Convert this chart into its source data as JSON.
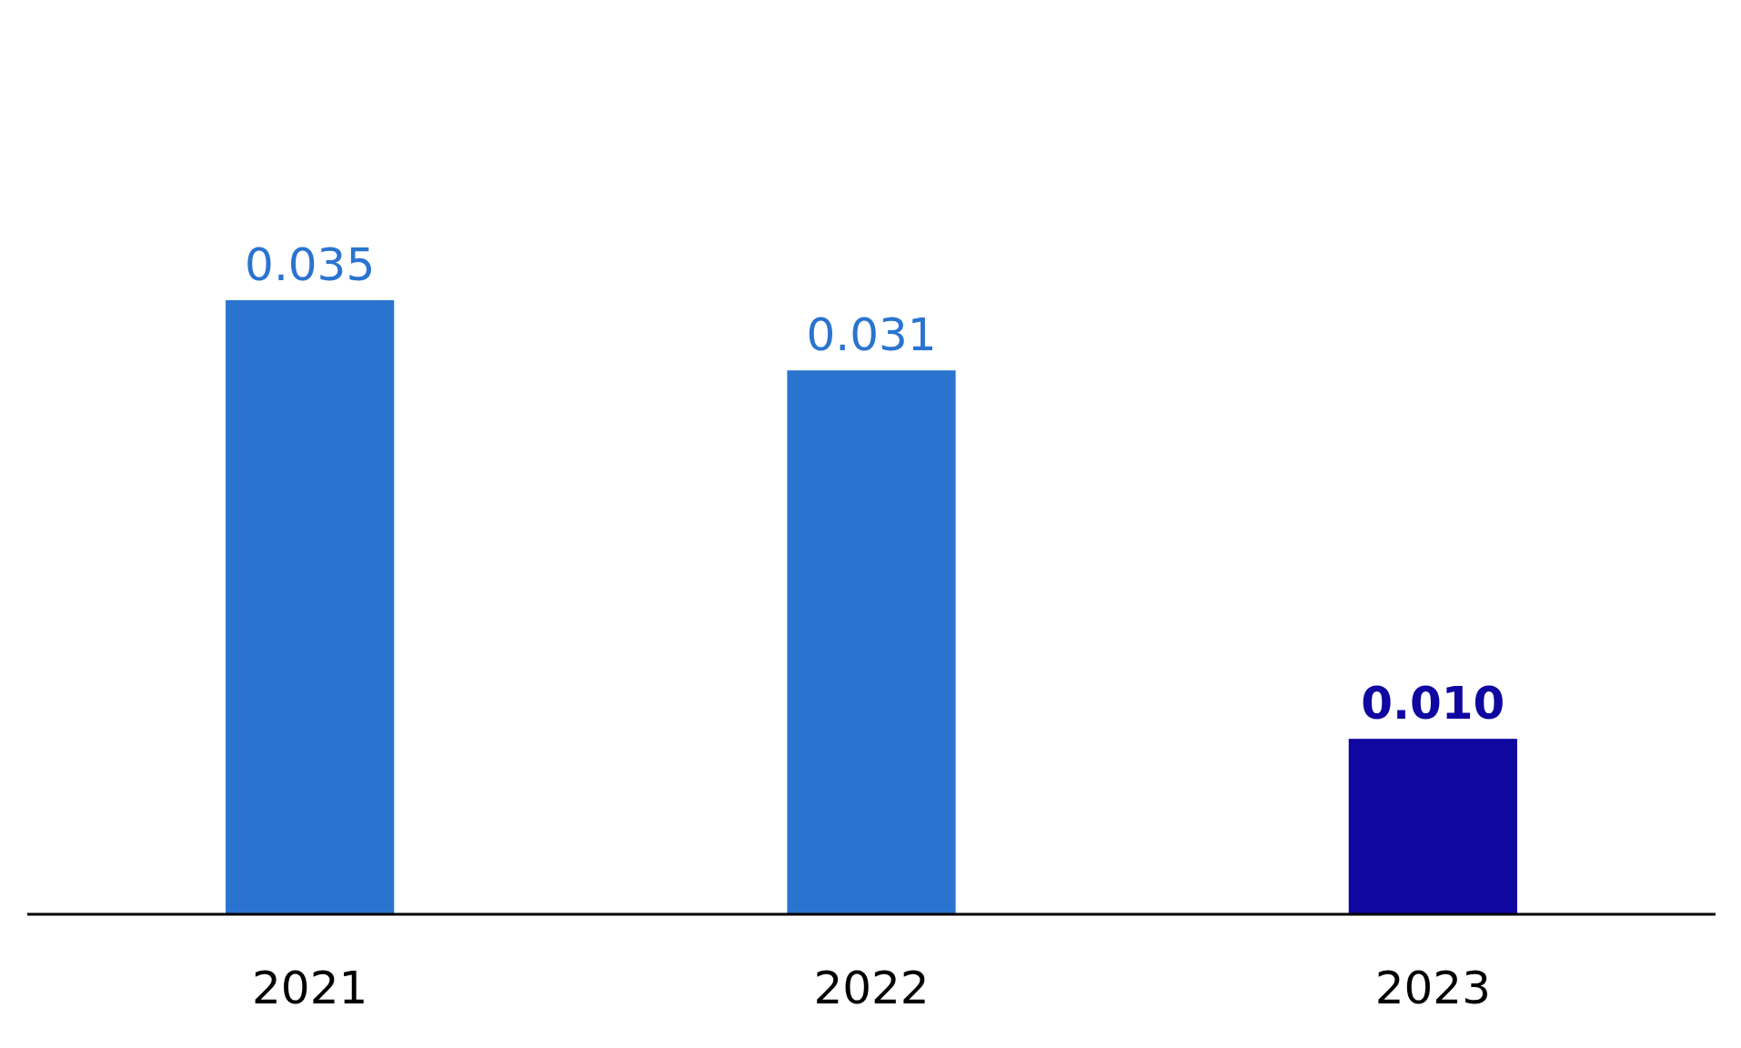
{
  "chart_data": {
    "type": "bar",
    "categories": [
      "2021",
      "2022",
      "2023"
    ],
    "values": [
      0.035,
      0.031,
      0.01
    ],
    "colors": [
      "#2a74d0",
      "#2a74d0",
      "#1006a0"
    ],
    "data_labels": true,
    "value_labels": [
      "0.035",
      "0.031",
      "0.010"
    ]
  }
}
